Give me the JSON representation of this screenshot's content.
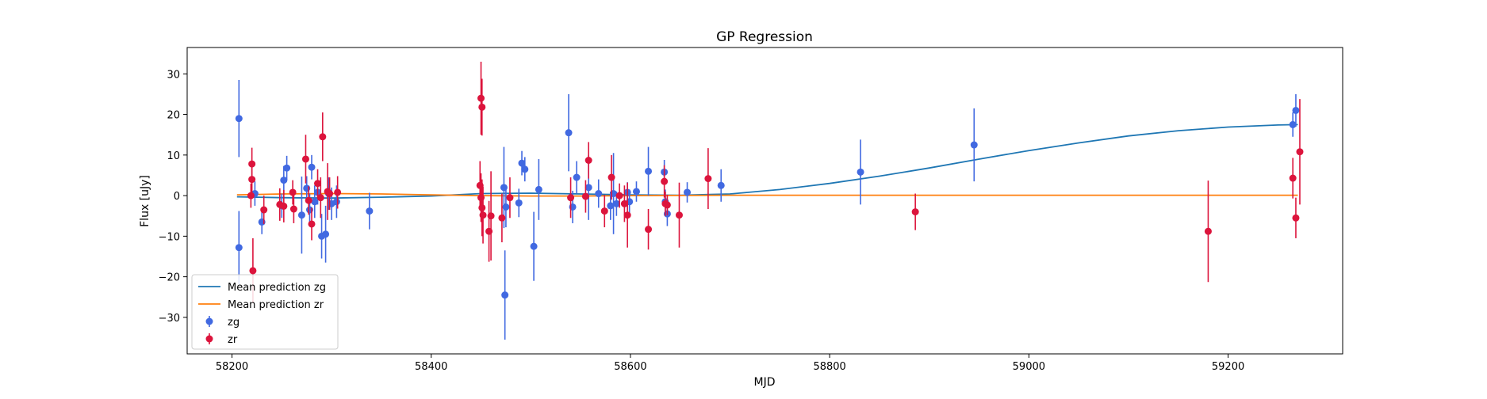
{
  "chart_data": {
    "type": "scatter",
    "title": "GP Regression",
    "xlabel": "MJD",
    "ylabel": "Flux [uJy]",
    "xlim": [
      58155,
      59315
    ],
    "ylim": [
      -39,
      36.5
    ],
    "xticks": [
      58200,
      58400,
      58600,
      58800,
      59000,
      59200
    ],
    "yticks": [
      -30,
      -20,
      -10,
      0,
      10,
      20,
      30
    ],
    "grid": false,
    "legend_position": "lower-left",
    "colors": {
      "zg_points": "#4169e1",
      "zr_points": "#dc143c",
      "zg_mean": "#1f77b4",
      "zr_mean": "#ff7f0e"
    },
    "lines": [
      {
        "name": "Mean prediction zg",
        "x": [
          58205,
          58250,
          58300,
          58350,
          58400,
          58450,
          58500,
          58550,
          58600,
          58650,
          58700,
          58750,
          58800,
          58850,
          58900,
          58950,
          59000,
          59050,
          59100,
          59150,
          59200,
          59250,
          59270
        ],
        "y": [
          -0.3,
          -0.5,
          -0.6,
          -0.4,
          -0.1,
          0.5,
          0.6,
          0.4,
          0.2,
          0.1,
          0.4,
          1.5,
          3.0,
          4.8,
          6.8,
          9.0,
          11.1,
          13.0,
          14.7,
          16.0,
          16.9,
          17.4,
          17.5
        ]
      },
      {
        "name": "Mean prediction zr",
        "x": [
          58205,
          58250,
          58300,
          58350,
          58400,
          58450,
          58500,
          58550,
          58600,
          58700,
          58800,
          58900,
          59000,
          59100,
          59200,
          59270
        ],
        "y": [
          0.2,
          0.4,
          0.5,
          0.4,
          0.2,
          0.0,
          -0.1,
          -0.1,
          0.0,
          0.1,
          0.1,
          0.1,
          0.1,
          0.1,
          0.1,
          0.1
        ]
      }
    ],
    "series": [
      {
        "name": "zg",
        "points": [
          {
            "x": 58207,
            "y": 19.0,
            "err": 9.5
          },
          {
            "x": 58207,
            "y": -12.8,
            "err": 9.0
          },
          {
            "x": 58223,
            "y": 0.5,
            "err": 3.0
          },
          {
            "x": 58230,
            "y": -6.5,
            "err": 3.0
          },
          {
            "x": 58250,
            "y": -2.5,
            "err": 3.0
          },
          {
            "x": 58252,
            "y": 3.8,
            "err": 3.5
          },
          {
            "x": 58255,
            "y": 6.8,
            "err": 3.0
          },
          {
            "x": 58270,
            "y": -4.8,
            "err": 9.5
          },
          {
            "x": 58275,
            "y": 1.8,
            "err": 3.0
          },
          {
            "x": 58278,
            "y": -3.5,
            "err": 4.0
          },
          {
            "x": 58280,
            "y": 7.0,
            "err": 3.0
          },
          {
            "x": 58283,
            "y": -1.5,
            "err": 4.0
          },
          {
            "x": 58286,
            "y": 0.8,
            "err": 3.0
          },
          {
            "x": 58290,
            "y": -10.0,
            "err": 5.5
          },
          {
            "x": 58294,
            "y": -9.5,
            "err": 7.0
          },
          {
            "x": 58297,
            "y": 0.5,
            "err": 4.0
          },
          {
            "x": 58300,
            "y": -2.0,
            "err": 4.0
          },
          {
            "x": 58305,
            "y": -1.5,
            "err": 4.0
          },
          {
            "x": 58338,
            "y": -3.8,
            "err": 4.5
          },
          {
            "x": 58473,
            "y": 2.0,
            "err": 10.0
          },
          {
            "x": 58474,
            "y": -24.5,
            "err": 11.0
          },
          {
            "x": 58475,
            "y": -2.8,
            "err": 5.0
          },
          {
            "x": 58488,
            "y": -1.8,
            "err": 3.5
          },
          {
            "x": 58491,
            "y": 8.0,
            "err": 3.0
          },
          {
            "x": 58494,
            "y": 6.5,
            "err": 3.0
          },
          {
            "x": 58503,
            "y": -12.5,
            "err": 8.5
          },
          {
            "x": 58508,
            "y": 1.5,
            "err": 7.5
          },
          {
            "x": 58538,
            "y": 15.5,
            "err": 9.5
          },
          {
            "x": 58542,
            "y": -2.8,
            "err": 4.0
          },
          {
            "x": 58546,
            "y": 4.5,
            "err": 4.0
          },
          {
            "x": 58558,
            "y": 2.0,
            "err": 8.0
          },
          {
            "x": 58568,
            "y": 0.5,
            "err": 3.5
          },
          {
            "x": 58580,
            "y": -2.5,
            "err": 3.5
          },
          {
            "x": 58583,
            "y": 0.5,
            "err": 10.0
          },
          {
            "x": 58586,
            "y": -2.0,
            "err": 3.0
          },
          {
            "x": 58597,
            "y": 0.8,
            "err": 2.5
          },
          {
            "x": 58599,
            "y": -1.5,
            "err": 3.0
          },
          {
            "x": 58606,
            "y": 1.0,
            "err": 2.5
          },
          {
            "x": 58618,
            "y": 6.0,
            "err": 6.0
          },
          {
            "x": 58634,
            "y": 5.8,
            "err": 3.0
          },
          {
            "x": 58635,
            "y": -1.5,
            "err": 3.0
          },
          {
            "x": 58637,
            "y": -4.5,
            "err": 3.0
          },
          {
            "x": 58657,
            "y": 0.8,
            "err": 2.5
          },
          {
            "x": 58691,
            "y": 2.5,
            "err": 4.0
          },
          {
            "x": 58831,
            "y": 5.8,
            "err": 8.0
          },
          {
            "x": 58945,
            "y": 12.5,
            "err": 9.0
          },
          {
            "x": 59265,
            "y": 17.5,
            "err": 3.0
          },
          {
            "x": 59268,
            "y": 21.0,
            "err": 4.0
          }
        ]
      },
      {
        "name": "zr",
        "points": [
          {
            "x": 58219,
            "y": 0.0,
            "err": 3.0
          },
          {
            "x": 58220,
            "y": 7.8,
            "err": 4.0
          },
          {
            "x": 58220,
            "y": 4.0,
            "err": 4.0
          },
          {
            "x": 58221,
            "y": -18.5,
            "err": 8.0
          },
          {
            "x": 58232,
            "y": -3.5,
            "err": 3.5
          },
          {
            "x": 58248,
            "y": -2.2,
            "err": 4.0
          },
          {
            "x": 58252,
            "y": -2.6,
            "err": 4.0
          },
          {
            "x": 58261,
            "y": 0.8,
            "err": 3.0
          },
          {
            "x": 58262,
            "y": -3.3,
            "err": 3.5
          },
          {
            "x": 58274,
            "y": 9.0,
            "err": 6.0
          },
          {
            "x": 58277,
            "y": -1.2,
            "err": 3.5
          },
          {
            "x": 58280,
            "y": -7.0,
            "err": 4.0
          },
          {
            "x": 58286,
            "y": 3.0,
            "err": 3.5
          },
          {
            "x": 58289,
            "y": -0.5,
            "err": 5.0
          },
          {
            "x": 58291,
            "y": 14.5,
            "err": 6.0
          },
          {
            "x": 58296,
            "y": 1.0,
            "err": 7.0
          },
          {
            "x": 58298,
            "y": 0.5,
            "err": 4.0
          },
          {
            "x": 58306,
            "y": 0.8,
            "err": 4.0
          },
          {
            "x": 58450,
            "y": 24.0,
            "err": 9.0
          },
          {
            "x": 58451,
            "y": 21.8,
            "err": 7.0
          },
          {
            "x": 58449,
            "y": 2.5,
            "err": 6.0
          },
          {
            "x": 58450,
            "y": -0.5,
            "err": 6.0
          },
          {
            "x": 58451,
            "y": -3.0,
            "err": 7.0
          },
          {
            "x": 58452,
            "y": -4.8,
            "err": 7.0
          },
          {
            "x": 58458,
            "y": -8.8,
            "err": 7.5
          },
          {
            "x": 58460,
            "y": -5.0,
            "err": 11.0
          },
          {
            "x": 58471,
            "y": -5.5,
            "err": 6.0
          },
          {
            "x": 58479,
            "y": -0.5,
            "err": 5.0
          },
          {
            "x": 58540,
            "y": -0.5,
            "err": 5.0
          },
          {
            "x": 58555,
            "y": -0.2,
            "err": 4.0
          },
          {
            "x": 58558,
            "y": 8.7,
            "err": 4.5
          },
          {
            "x": 58574,
            "y": -3.8,
            "err": 4.0
          },
          {
            "x": 58581,
            "y": 4.5,
            "err": 5.5
          },
          {
            "x": 58589,
            "y": 0.0,
            "err": 3.0
          },
          {
            "x": 58594,
            "y": -2.0,
            "err": 4.5
          },
          {
            "x": 58597,
            "y": -4.8,
            "err": 8.0
          },
          {
            "x": 58618,
            "y": -8.3,
            "err": 5.0
          },
          {
            "x": 58634,
            "y": 3.5,
            "err": 4.0
          },
          {
            "x": 58635,
            "y": -2.0,
            "err": 3.0
          },
          {
            "x": 58637,
            "y": -2.3,
            "err": 2.5
          },
          {
            "x": 58649,
            "y": -4.8,
            "err": 8.0
          },
          {
            "x": 58678,
            "y": 4.2,
            "err": 7.5
          },
          {
            "x": 58886,
            "y": -4.0,
            "err": 4.5
          },
          {
            "x": 59180,
            "y": -8.8,
            "err": 12.5
          },
          {
            "x": 59265,
            "y": 4.3,
            "err": 5.0
          },
          {
            "x": 59268,
            "y": -5.5,
            "err": 5.0
          },
          {
            "x": 59272,
            "y": 10.8,
            "err": 13.0
          }
        ]
      }
    ],
    "legend": [
      {
        "label": "Mean prediction zg",
        "kind": "line",
        "color": "#1f77b4"
      },
      {
        "label": "Mean prediction zr",
        "kind": "line",
        "color": "#ff7f0e"
      },
      {
        "label": "zg",
        "kind": "errorbar",
        "color": "#4169e1"
      },
      {
        "label": "zr",
        "kind": "errorbar",
        "color": "#dc143c"
      }
    ]
  }
}
